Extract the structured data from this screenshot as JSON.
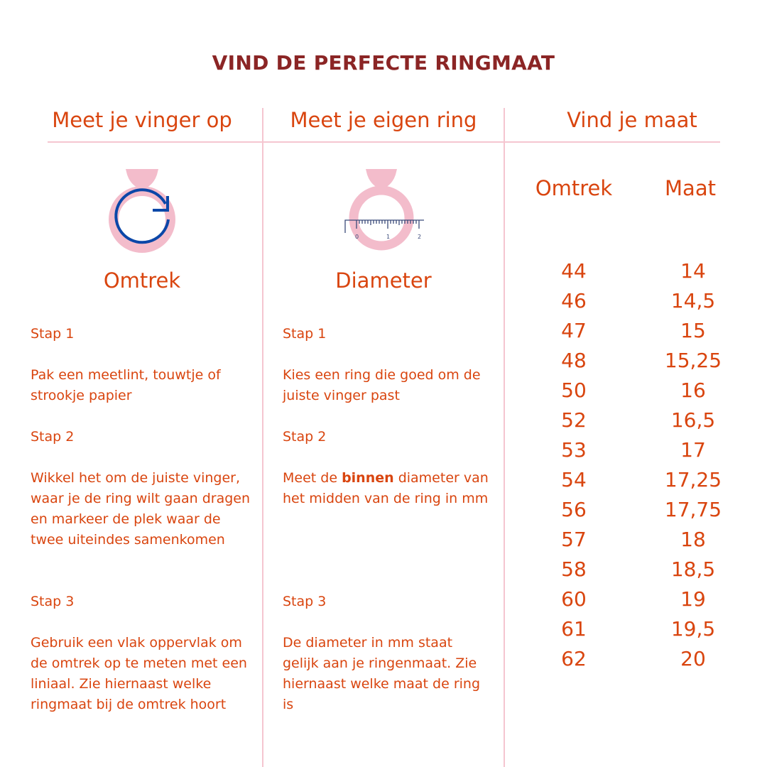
{
  "title": "VIND DE PERFECTE RINGMAAT",
  "columns": {
    "finger": {
      "heading": "Meet je vinger op",
      "icon": "ring-circumference-icon",
      "label": "Omtrek",
      "steps": [
        {
          "title": "Stap 1",
          "text": "Pak een meetlint, touwtje of strookje papier"
        },
        {
          "title": "Stap 2",
          "text": "Wikkel het om de juiste vinger, waar je de ring wilt gaan dragen en markeer de plek waar de twee uiteindes samenkomen"
        },
        {
          "title": "Stap 3",
          "text": "Gebruik een vlak oppervlak om de omtrek op te meten met een liniaal. Zie hiernaast welke ringmaat bij de omtrek hoort"
        }
      ]
    },
    "ring": {
      "heading": "Meet je eigen ring",
      "icon": "ring-ruler-icon",
      "ruler_labels": [
        "0",
        "1",
        "2"
      ],
      "label": "Diameter",
      "steps": [
        {
          "title": "Stap 1",
          "text": "Kies een ring die goed om de juiste vinger past"
        },
        {
          "title": "Stap 2",
          "text_before": "Meet de ",
          "text_bold": "binnen",
          "text_after": " diameter van het midden van de ring in mm"
        },
        {
          "title": "Stap 3",
          "text": "De diameter in mm staat gelijk aan je ringenmaat. Zie hiernaast welke maat de ring is"
        }
      ]
    },
    "table": {
      "heading": "Vind je maat",
      "headers": [
        "Omtrek",
        "Maat"
      ],
      "rows": [
        [
          "44",
          "14"
        ],
        [
          "46",
          "14,5"
        ],
        [
          "47",
          "15"
        ],
        [
          "48",
          "15,25"
        ],
        [
          "50",
          "16"
        ],
        [
          "52",
          "16,5"
        ],
        [
          "53",
          "17"
        ],
        [
          "54",
          "17,25"
        ],
        [
          "56",
          "17,75"
        ],
        [
          "57",
          "18"
        ],
        [
          "58",
          "18,5"
        ],
        [
          "60",
          "19"
        ],
        [
          "61",
          "19,5"
        ],
        [
          "62",
          "20"
        ]
      ]
    }
  },
  "colors": {
    "title": "#8b2525",
    "text": "#d9450f",
    "accent_pink": "#f5c6d0",
    "ring_pink": "#f3bccb",
    "arrow_blue": "#0b47a8"
  }
}
